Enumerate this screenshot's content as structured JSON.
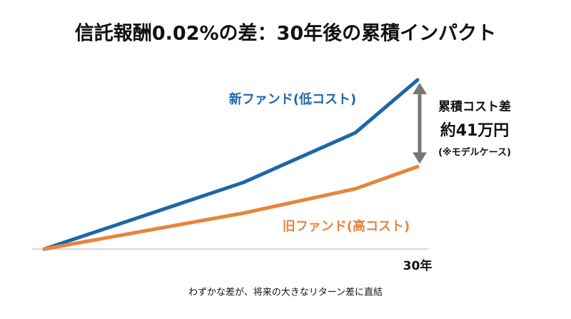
{
  "chart_data": {
    "type": "line",
    "title": "信託報酬0.02%の差：30年後の累積インパクト",
    "x": [
      0,
      16,
      25,
      30
    ],
    "xlim": [
      0,
      30
    ],
    "xticks": [
      {
        "value": 30,
        "label": "30年"
      }
    ],
    "ylim": [
      0,
      80
    ],
    "series": [
      {
        "name": "新ファンド(低コスト)",
        "color": "#1f66a8",
        "values": [
          0,
          31.5,
          55,
          80
        ]
      },
      {
        "name": "旧ファンド(高コスト)",
        "color": "#e8843c",
        "values": [
          0,
          17,
          28.5,
          39
        ]
      }
    ],
    "annotation": {
      "title": "累積コスト差",
      "value_label": "約41万円",
      "note": "(※モデルケース)"
    },
    "footnote": "わずかな差が、将来の大きなリターン差に直結"
  }
}
